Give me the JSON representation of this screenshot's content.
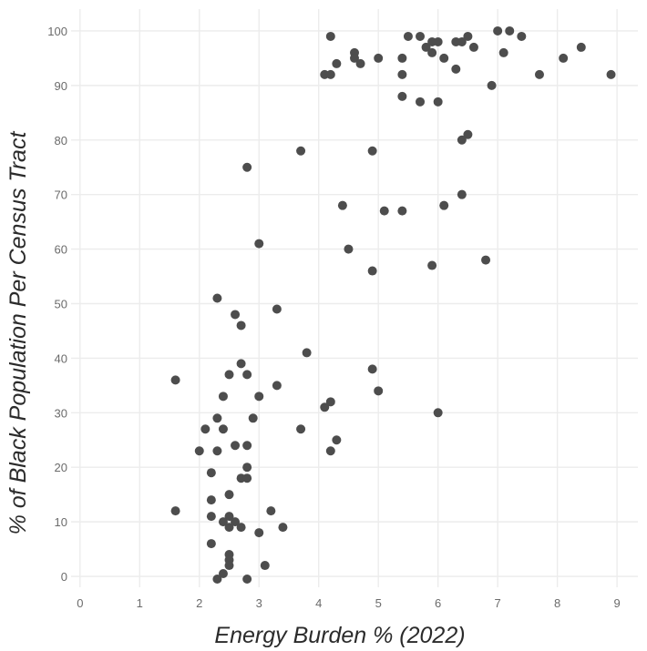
{
  "chart_data": {
    "type": "scatter",
    "title": "",
    "xlabel": "Energy Burden % (2022)",
    "ylabel": "% of Black Population Per Census Tract",
    "xlim": [
      -0.15,
      9.35
    ],
    "ylim": [
      -2,
      104
    ],
    "x_ticks": [
      0,
      1,
      2,
      3,
      4,
      5,
      6,
      7,
      8,
      9
    ],
    "y_ticks": [
      0,
      10,
      20,
      30,
      40,
      50,
      60,
      70,
      80,
      90,
      100
    ],
    "grid": true,
    "legend": "none",
    "point_color": "#4d4d4d",
    "series": [
      {
        "points": [
          [
            4.2,
            99
          ],
          [
            5.5,
            99
          ],
          [
            5.7,
            99
          ],
          [
            6.5,
            99
          ],
          [
            7.0,
            100
          ],
          [
            7.2,
            100
          ],
          [
            7.4,
            99
          ],
          [
            5.8,
            97
          ],
          [
            5.9,
            98
          ],
          [
            6.0,
            98
          ],
          [
            6.3,
            98
          ],
          [
            6.4,
            98
          ],
          [
            6.6,
            97
          ],
          [
            8.4,
            97
          ],
          [
            4.6,
            96
          ],
          [
            5.9,
            96
          ],
          [
            7.1,
            96
          ],
          [
            4.6,
            95
          ],
          [
            5.0,
            95
          ],
          [
            5.4,
            95
          ],
          [
            6.1,
            95
          ],
          [
            8.1,
            95
          ],
          [
            4.3,
            94
          ],
          [
            4.7,
            94
          ],
          [
            6.3,
            93
          ],
          [
            4.1,
            92
          ],
          [
            4.2,
            92
          ],
          [
            5.4,
            92
          ],
          [
            7.7,
            92
          ],
          [
            8.9,
            92
          ],
          [
            6.9,
            90
          ],
          [
            5.4,
            88
          ],
          [
            5.7,
            87
          ],
          [
            6.0,
            87
          ],
          [
            6.5,
            81
          ],
          [
            6.4,
            80
          ],
          [
            3.7,
            78
          ],
          [
            4.9,
            78
          ],
          [
            2.8,
            75
          ],
          [
            6.4,
            70
          ],
          [
            4.4,
            68
          ],
          [
            6.1,
            68
          ],
          [
            5.1,
            67
          ],
          [
            5.4,
            67
          ],
          [
            3.0,
            61
          ],
          [
            4.5,
            60
          ],
          [
            6.8,
            58
          ],
          [
            5.9,
            57
          ],
          [
            4.9,
            56
          ],
          [
            2.3,
            51
          ],
          [
            3.3,
            49
          ],
          [
            2.6,
            48
          ],
          [
            2.7,
            46
          ],
          [
            3.8,
            41
          ],
          [
            2.7,
            39
          ],
          [
            4.9,
            38
          ],
          [
            2.5,
            37
          ],
          [
            2.8,
            37
          ],
          [
            1.6,
            36
          ],
          [
            3.3,
            35
          ],
          [
            5.0,
            34
          ],
          [
            2.4,
            33
          ],
          [
            3.0,
            33
          ],
          [
            4.2,
            32
          ],
          [
            4.1,
            31
          ],
          [
            6.0,
            30
          ],
          [
            2.3,
            29
          ],
          [
            2.9,
            29
          ],
          [
            2.1,
            27
          ],
          [
            2.4,
            27
          ],
          [
            3.7,
            27
          ],
          [
            4.3,
            25
          ],
          [
            2.6,
            24
          ],
          [
            2.8,
            24
          ],
          [
            2.0,
            23
          ],
          [
            2.3,
            23
          ],
          [
            4.2,
            23
          ],
          [
            2.8,
            20
          ],
          [
            2.2,
            19
          ],
          [
            2.7,
            18
          ],
          [
            2.8,
            18
          ],
          [
            2.5,
            15
          ],
          [
            2.2,
            14
          ],
          [
            1.6,
            12
          ],
          [
            3.2,
            12
          ],
          [
            2.2,
            11
          ],
          [
            2.5,
            11
          ],
          [
            2.4,
            10
          ],
          [
            2.6,
            10
          ],
          [
            2.5,
            9
          ],
          [
            2.7,
            9
          ],
          [
            3.4,
            9
          ],
          [
            3.0,
            8
          ],
          [
            2.2,
            6
          ],
          [
            2.5,
            4
          ],
          [
            2.5,
            3
          ],
          [
            2.5,
            2
          ],
          [
            3.1,
            2
          ],
          [
            2.4,
            0.5
          ],
          [
            2.3,
            -0.5
          ],
          [
            2.8,
            -0.5
          ]
        ]
      }
    ]
  }
}
